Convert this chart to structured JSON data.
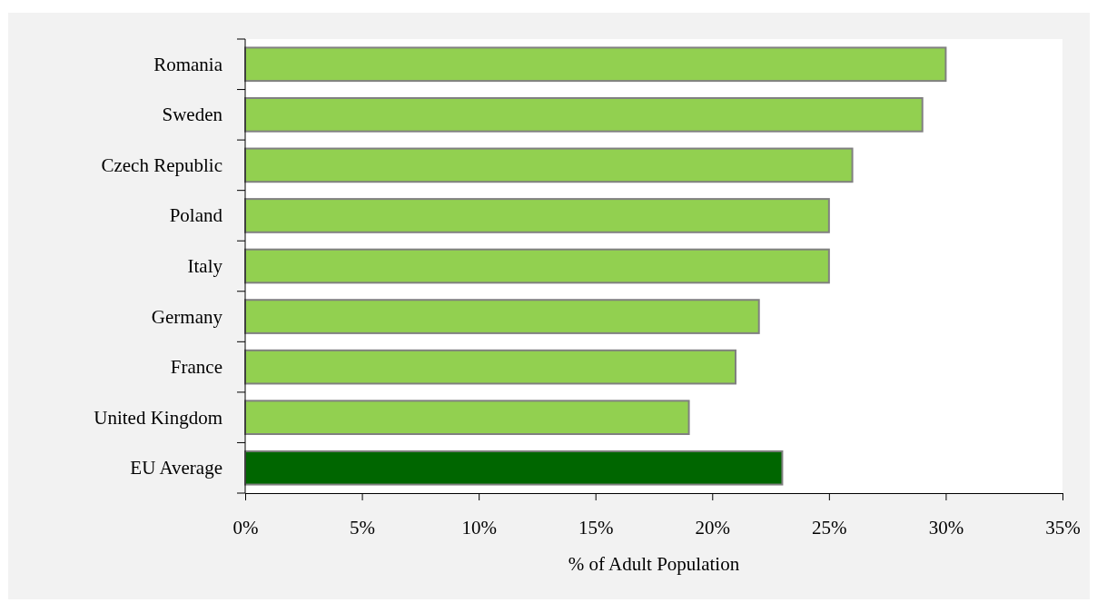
{
  "chart_data": {
    "type": "bar",
    "orientation": "horizontal",
    "categories": [
      "Romania",
      "Sweden",
      "Czech Republic",
      "Poland",
      "Italy",
      "Germany",
      "France",
      "United Kingdom",
      "EU Average"
    ],
    "values": [
      30,
      29,
      26,
      25,
      25,
      22,
      21,
      19,
      23
    ],
    "colors": [
      "#92d050",
      "#92d050",
      "#92d050",
      "#92d050",
      "#92d050",
      "#92d050",
      "#92d050",
      "#92d050",
      "#006600"
    ],
    "xlabel": "% of Adult Population",
    "xlim": [
      0,
      35
    ],
    "xticks": [
      {
        "value": 0,
        "label": "0%"
      },
      {
        "value": 5,
        "label": "5%"
      },
      {
        "value": 10,
        "label": "10%"
      },
      {
        "value": 15,
        "label": "15%"
      },
      {
        "value": 20,
        "label": "20%"
      },
      {
        "value": 25,
        "label": "25%"
      },
      {
        "value": 30,
        "label": "30%"
      },
      {
        "value": 35,
        "label": "35%"
      }
    ]
  }
}
